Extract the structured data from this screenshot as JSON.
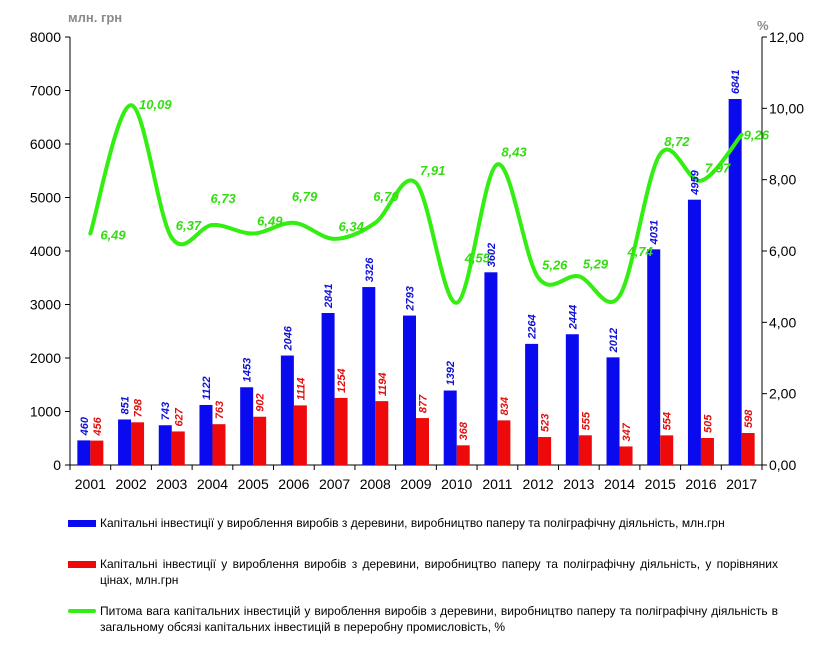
{
  "chart_data": {
    "type": "bar+line",
    "categories": [
      "2001",
      "2002",
      "2003",
      "2004",
      "2005",
      "2006",
      "2007",
      "2008",
      "2009",
      "2010",
      "2011",
      "2012",
      "2013",
      "2014",
      "2015",
      "2016",
      "2017"
    ],
    "series": [
      {
        "name": "Капітальні інвестиції у вироблення виробів з деревини, виробництво паперу та поліграфічну діяльність, млн.грн",
        "type": "bar",
        "axis": "left",
        "color": "#0a0aee",
        "values": [
          460,
          851,
          743,
          1122,
          1453,
          2046,
          2841,
          3326,
          2793,
          1392,
          3602,
          2264,
          2444,
          2012,
          4031,
          4959,
          6841
        ]
      },
      {
        "name": "Капітальні інвестиції у вироблення виробів з деревини, виробництво паперу та поліграфічну діяльність, у порівняних цінах, млн.грн",
        "type": "bar",
        "axis": "left",
        "color": "#ee0a0a",
        "values": [
          456,
          798,
          627,
          763,
          902,
          1114,
          1254,
          1194,
          877,
          368,
          834,
          523,
          555,
          347,
          554,
          505,
          598
        ]
      },
      {
        "name": "Питома вага капітальних інвестицій у вироблення виробів з деревини, виробництво паперу та поліграфічну діяльність в загальному обсязі капітальних інвестицій в переробну промисловість, %",
        "type": "line",
        "axis": "right",
        "color": "#33ee11",
        "values": [
          6.49,
          10.09,
          6.37,
          6.73,
          6.49,
          6.79,
          6.34,
          6.79,
          7.91,
          4.55,
          8.43,
          5.26,
          5.29,
          4.74,
          8.72,
          7.97,
          9.26
        ],
        "labels": [
          "6,49",
          "10,09",
          "6,37",
          "6,73",
          "6,49",
          "6,79",
          "6,34",
          "6,79",
          "7,91",
          "4,55",
          "8,43",
          "5,26",
          "5,29",
          "4,74",
          "8,72",
          "7,97",
          "9,26"
        ]
      }
    ],
    "y_left": {
      "label": "млн. грн",
      "min": 0,
      "max": 8000,
      "ticks": [
        "0",
        "1000",
        "2000",
        "3000",
        "4000",
        "5000",
        "6000",
        "7000",
        "8000"
      ]
    },
    "y_right": {
      "label": "%",
      "min": 0,
      "max": 12,
      "ticks": [
        "0,00",
        "2,00",
        "4,00",
        "6,00",
        "8,00",
        "10,00",
        "12,00"
      ]
    },
    "grid": false,
    "legend_position": "bottom"
  },
  "legend": {
    "items": [
      {
        "text": "Капітальні  інвестиції у вироблення виробів з деревини, виробництво паперу та поліграфічну діяльність, млн.грн",
        "color": "#0a0aee",
        "kind": "bar"
      },
      {
        "text": "Капітальні  інвестиції  у  вироблення  виробів  з деревини,  виробництво  паперу  та  поліграфічну  діяльність,  у  порівняних  цінах, млн.грн",
        "color": "#ee0a0a",
        "kind": "bar"
      },
      {
        "text": "Питома вага капітальних  інвестицій   у  вироблення  виробів з деревини,  виробництво паперу  та  поліграфічну  діяльність  в загальному  обсязі  капітальних  інвестицій  в переробну промисловість, %",
        "color": "#33ee11",
        "kind": "line"
      }
    ]
  }
}
